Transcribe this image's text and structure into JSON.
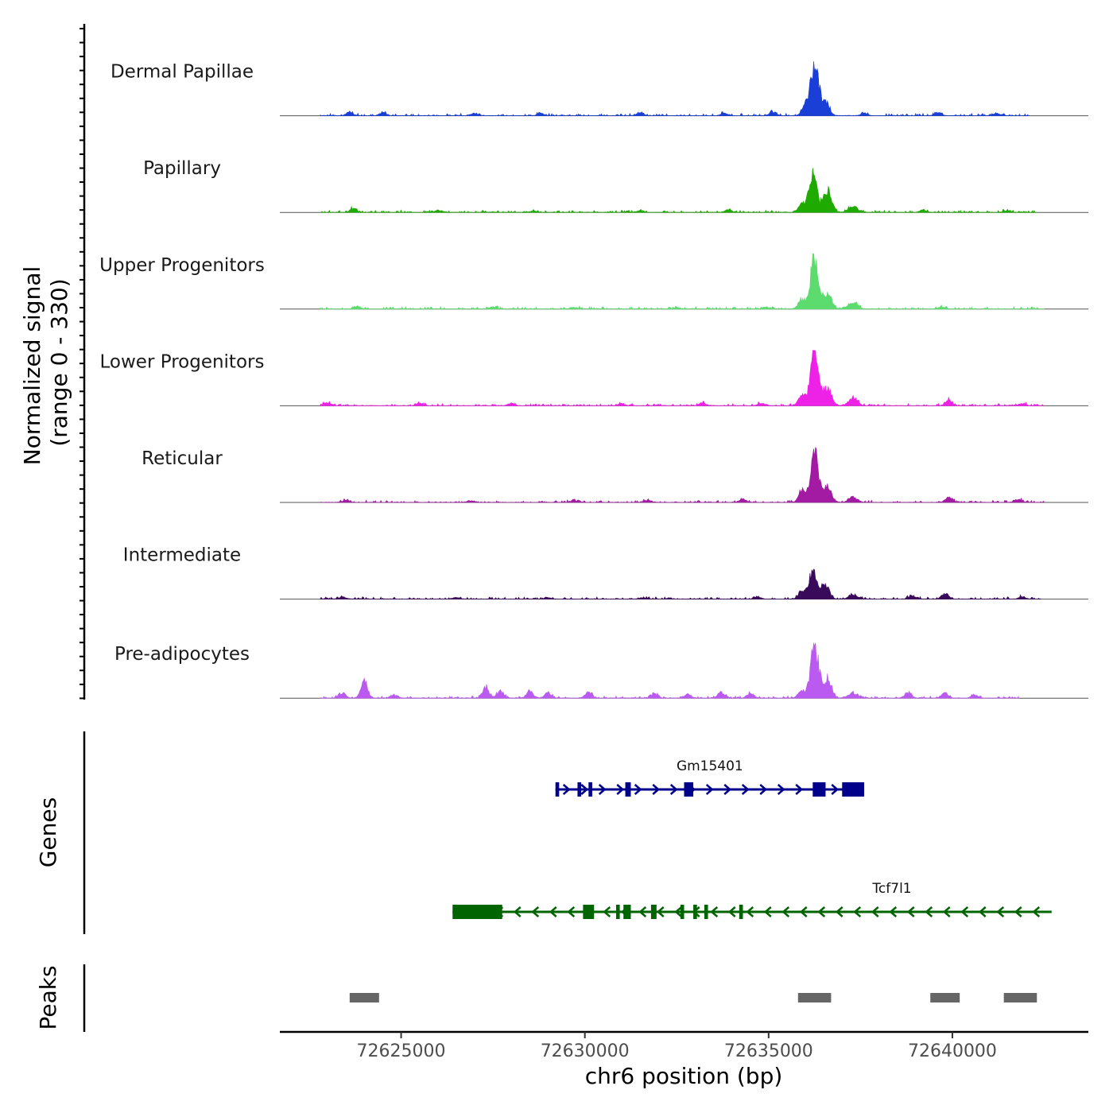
{
  "chart_data": {
    "type": "area",
    "title": "",
    "xlabel": "chr6 position (bp)",
    "ylabel_line1": "Normalized signal",
    "ylabel_line2": "(range 0 - 330)",
    "genes_label": "Genes",
    "peaks_label": "Peaks",
    "xlim": [
      72621700,
      72643700
    ],
    "ylim": [
      0,
      330
    ],
    "x_ticks": [
      72625000,
      72630000,
      72635000,
      72640000
    ],
    "x_tick_labels": [
      "72625000",
      "72630000",
      "72635000",
      "72640000"
    ],
    "signal_start": 72622800,
    "signal_end": 72642700,
    "tracks": [
      {
        "name": "Dermal Papillae",
        "color": "#1a3fd6",
        "peaks": [
          [
            72636000,
            60,
            90
          ],
          [
            72636250,
            315,
            110
          ],
          [
            72636550,
            85,
            100
          ]
        ],
        "bumps": [
          [
            72623600,
            20
          ],
          [
            72624500,
            16
          ],
          [
            72627000,
            14
          ],
          [
            72628800,
            12
          ],
          [
            72631500,
            18
          ],
          [
            72633800,
            12
          ],
          [
            72635100,
            20
          ],
          [
            72637600,
            14
          ],
          [
            72639600,
            18
          ],
          [
            72641200,
            12
          ]
        ],
        "end": 72642100
      },
      {
        "name": "Papillary",
        "color": "#1faa00",
        "peaks": [
          [
            72635900,
            45,
            90
          ],
          [
            72636200,
            215,
            110
          ],
          [
            72636600,
            130,
            110
          ],
          [
            72637300,
            35,
            120
          ]
        ],
        "bumps": [
          [
            72623700,
            22
          ],
          [
            72626000,
            10
          ],
          [
            72628600,
            9
          ],
          [
            72631500,
            10
          ],
          [
            72633900,
            14
          ],
          [
            72639200,
            12
          ],
          [
            72641500,
            12
          ]
        ],
        "end": 72642300
      },
      {
        "name": "Upper Progenitors",
        "color": "#5cdc6e",
        "peaks": [
          [
            72635900,
            55,
            90
          ],
          [
            72636250,
            310,
            110
          ],
          [
            72636600,
            90,
            110
          ],
          [
            72637300,
            35,
            120
          ]
        ],
        "bumps": [
          [
            72623800,
            16
          ],
          [
            72627500,
            12
          ],
          [
            72629700,
            10
          ],
          [
            72632500,
            8
          ],
          [
            72634900,
            12
          ],
          [
            72639700,
            10
          ]
        ],
        "end": 72642500
      },
      {
        "name": "Lower Progenitors",
        "color": "#ee22e6",
        "peaks": [
          [
            72635900,
            60,
            90
          ],
          [
            72636250,
            325,
            110
          ],
          [
            72636600,
            100,
            110
          ],
          [
            72637300,
            45,
            120
          ]
        ],
        "bumps": [
          [
            72623000,
            18
          ],
          [
            72625500,
            14
          ],
          [
            72628000,
            14
          ],
          [
            72631000,
            12
          ],
          [
            72633200,
            16
          ],
          [
            72634800,
            14
          ],
          [
            72639900,
            30
          ],
          [
            72641900,
            12
          ]
        ],
        "end": 72642500
      },
      {
        "name": "Reticular",
        "color": "#a31aa3",
        "peaks": [
          [
            72635900,
            60,
            90
          ],
          [
            72636250,
            285,
            110
          ],
          [
            72636600,
            95,
            110
          ],
          [
            72637300,
            30,
            120
          ]
        ],
        "bumps": [
          [
            72623500,
            14
          ],
          [
            72626900,
            10
          ],
          [
            72629700,
            10
          ],
          [
            72631700,
            12
          ],
          [
            72634300,
            18
          ],
          [
            72639900,
            30
          ],
          [
            72641800,
            18
          ]
        ],
        "end": 72642500
      },
      {
        "name": "Intermediate",
        "color": "#3a0a5a",
        "peaks": [
          [
            72635900,
            50,
            90
          ],
          [
            72636200,
            155,
            110
          ],
          [
            72636550,
            85,
            100
          ],
          [
            72637300,
            22,
            120
          ]
        ],
        "bumps": [
          [
            72623400,
            12
          ],
          [
            72626500,
            10
          ],
          [
            72629000,
            8
          ],
          [
            72631600,
            8
          ],
          [
            72634700,
            12
          ],
          [
            72638900,
            20
          ],
          [
            72639800,
            32
          ],
          [
            72641900,
            12
          ]
        ],
        "end": 72642400
      },
      {
        "name": "Pre-adipocytes",
        "color": "#bb5af0",
        "peaks": [
          [
            72635900,
            40,
            90
          ],
          [
            72636250,
            305,
            110
          ],
          [
            72636600,
            110,
            110
          ],
          [
            72637300,
            30,
            120
          ]
        ],
        "bumps": [
          [
            72623400,
            30
          ],
          [
            72624000,
            95
          ],
          [
            72624800,
            20
          ],
          [
            72627300,
            60
          ],
          [
            72627700,
            40
          ],
          [
            72628500,
            38
          ],
          [
            72629000,
            30
          ],
          [
            72630100,
            38
          ],
          [
            72631900,
            26
          ],
          [
            72632800,
            22
          ],
          [
            72633700,
            34
          ],
          [
            72634500,
            26
          ],
          [
            72638800,
            36
          ],
          [
            72639800,
            28
          ],
          [
            72640600,
            20
          ]
        ],
        "end": 72641800
      }
    ],
    "genes": [
      {
        "name": "Gm15401",
        "color": "#00008b",
        "strand": "+",
        "start": 72629200,
        "end": 72637600,
        "exons": [
          [
            72629200,
            72629300
          ],
          [
            72629800,
            72629900
          ],
          [
            72630100,
            72630200
          ],
          [
            72631100,
            72631250
          ],
          [
            72632700,
            72632950
          ],
          [
            72636200,
            72636550
          ],
          [
            72637000,
            72637600
          ]
        ]
      },
      {
        "name": "Tcf7l1",
        "color": "#006400",
        "strand": "-",
        "start": 72626400,
        "end": 72642700,
        "exons": [
          [
            72626400,
            72627750
          ],
          [
            72629950,
            72630250
          ],
          [
            72630850,
            72630950
          ],
          [
            72631050,
            72631250
          ],
          [
            72631800,
            72631950
          ],
          [
            72632600,
            72632700
          ],
          [
            72632950,
            72633050
          ],
          [
            72633250,
            72633350
          ],
          [
            72634200,
            72634300
          ]
        ]
      }
    ],
    "peaks_regions": [
      [
        72623600,
        72624400
      ],
      [
        72635800,
        72636700
      ],
      [
        72639400,
        72640200
      ],
      [
        72641400,
        72642300
      ]
    ]
  }
}
